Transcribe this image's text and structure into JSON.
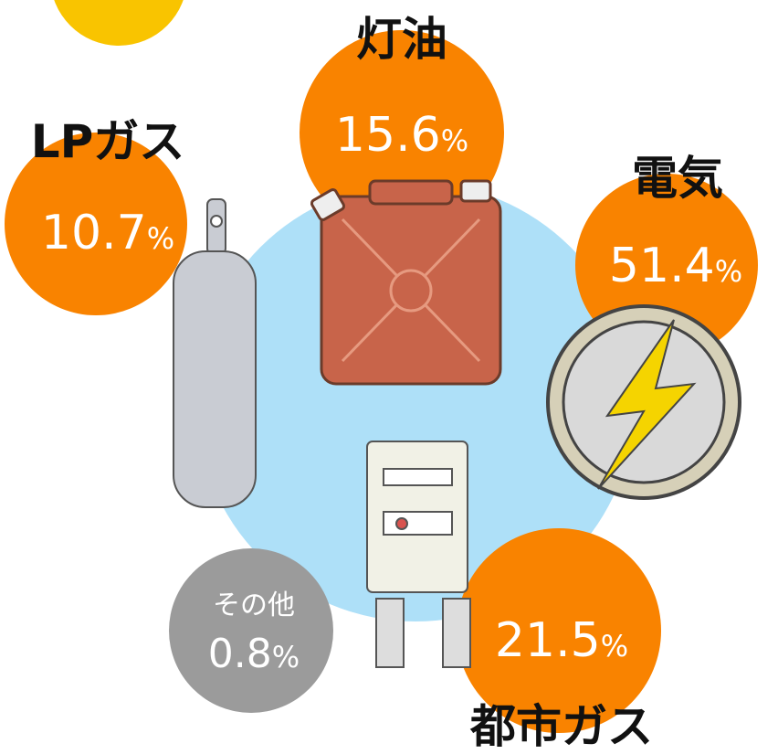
{
  "nodes": [
    {
      "label": "灯油",
      "value": "15.6",
      "unit": "%"
    },
    {
      "label": "LPガス",
      "value": "10.7",
      "unit": "%"
    },
    {
      "label": "電気",
      "value": "51.4",
      "unit": "%"
    },
    {
      "label": "都市ガス",
      "value": "21.5",
      "unit": "%"
    },
    {
      "label": "その他",
      "value": "0.8",
      "unit": "%"
    }
  ]
}
